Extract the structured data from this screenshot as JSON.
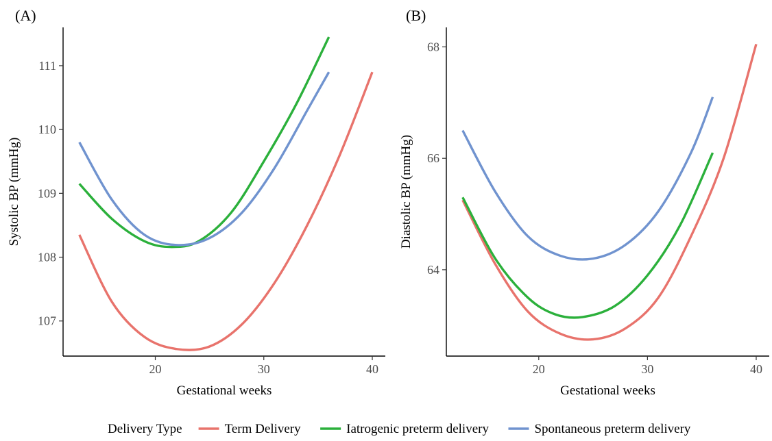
{
  "legend": {
    "title": "Delivery Type",
    "position": "bottom",
    "entries": [
      {
        "name": "Term Delivery",
        "color": "#E8736C"
      },
      {
        "name": "Iatrogenic preterm delivery",
        "color": "#2BB03B"
      },
      {
        "name": "Spontaneous preterm delivery",
        "color": "#7093CF"
      }
    ]
  },
  "chart_data": [
    {
      "type": "line",
      "panel": "(A)",
      "xlabel": "Gestational weeks",
      "ylabel": "Systolic BP (mmHg)",
      "xlim": [
        11.5,
        41.2
      ],
      "ylim": [
        106.45,
        111.6
      ],
      "xticks": [
        20,
        30,
        40
      ],
      "yticks": [
        107,
        108,
        109,
        110,
        111
      ],
      "grid": false,
      "series": [
        {
          "name": "Term Delivery",
          "color": "#E8736C",
          "x": [
            13,
            16,
            19,
            22,
            25,
            28,
            31,
            34,
            37,
            40
          ],
          "y": [
            108.35,
            107.3,
            106.75,
            106.56,
            106.6,
            106.95,
            107.6,
            108.5,
            109.6,
            110.9
          ]
        },
        {
          "name": "Iatrogenic preterm delivery",
          "color": "#2BB03B",
          "x": [
            13,
            16,
            19,
            21.5,
            24,
            27,
            30,
            33,
            36
          ],
          "y": [
            109.15,
            108.6,
            108.25,
            108.16,
            108.25,
            108.7,
            109.5,
            110.4,
            111.45
          ]
        },
        {
          "name": "Spontaneous preterm delivery",
          "color": "#7093CF",
          "x": [
            13,
            16,
            19,
            22,
            25,
            28,
            31,
            34,
            36
          ],
          "y": [
            109.8,
            108.9,
            108.35,
            108.19,
            108.3,
            108.7,
            109.4,
            110.3,
            110.9
          ]
        }
      ]
    },
    {
      "type": "line",
      "panel": "(B)",
      "xlabel": "Gestational weeks",
      "ylabel": "Diastolic BP (mmHg)",
      "xlim": [
        11.5,
        41.2
      ],
      "ylim": [
        62.45,
        68.35
      ],
      "xticks": [
        20,
        30,
        40
      ],
      "yticks": [
        64,
        66,
        68
      ],
      "grid": false,
      "series": [
        {
          "name": "Term Delivery",
          "color": "#E8736C",
          "x": [
            13,
            16,
            19,
            22,
            25,
            28,
            31,
            34,
            37,
            40
          ],
          "y": [
            65.25,
            64.1,
            63.25,
            62.85,
            62.75,
            62.95,
            63.5,
            64.6,
            66.0,
            68.05
          ]
        },
        {
          "name": "Iatrogenic preterm delivery",
          "color": "#2BB03B",
          "x": [
            13,
            16,
            19,
            21.5,
            24,
            27,
            30,
            33,
            36
          ],
          "y": [
            65.3,
            64.2,
            63.5,
            63.2,
            63.15,
            63.35,
            63.9,
            64.8,
            66.1
          ]
        },
        {
          "name": "Spontaneous preterm delivery",
          "color": "#7093CF",
          "x": [
            13,
            16,
            19,
            22,
            25,
            28,
            31,
            34,
            36
          ],
          "y": [
            66.5,
            65.4,
            64.6,
            64.25,
            64.2,
            64.45,
            65.05,
            66.1,
            67.1
          ]
        }
      ]
    }
  ]
}
